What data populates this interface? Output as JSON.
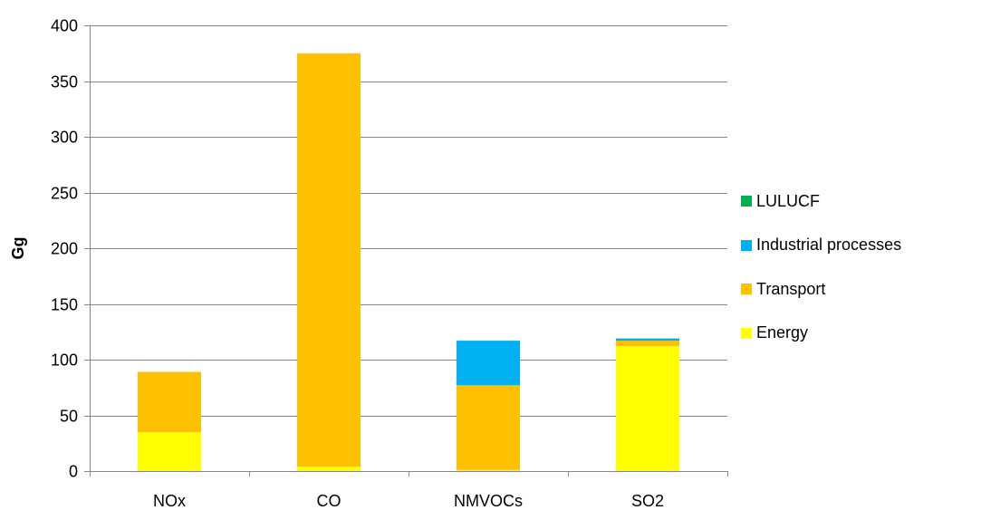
{
  "chart_data": {
    "type": "bar",
    "stacked": true,
    "title": "",
    "xlabel": "",
    "ylabel": "Gg",
    "ylim": [
      0,
      400
    ],
    "yticks": [
      0,
      50,
      100,
      150,
      200,
      250,
      300,
      350,
      400
    ],
    "categories": [
      "NOx",
      "CO",
      "NMVOCs",
      "SO2"
    ],
    "series": [
      {
        "name": "Energy",
        "color": "#FFFF00",
        "values": [
          35,
          4,
          1,
          112
        ]
      },
      {
        "name": "Transport",
        "color": "#FFC000",
        "values": [
          54,
          371,
          76,
          5
        ]
      },
      {
        "name": "Industrial processes",
        "color": "#00B0F0",
        "values": [
          0,
          0,
          40,
          2
        ]
      },
      {
        "name": "LULUCF",
        "color": "#00B050",
        "values": [
          0,
          0,
          0,
          0
        ]
      }
    ],
    "grid": true,
    "legend_position": "right"
  },
  "legend": [
    {
      "label": "LULUCF",
      "color": "#00B050"
    },
    {
      "label": "Industrial processes",
      "color": "#00B0F0"
    },
    {
      "label": "Transport",
      "color": "#FFC000"
    },
    {
      "label": "Energy",
      "color": "#FFFF00"
    }
  ]
}
